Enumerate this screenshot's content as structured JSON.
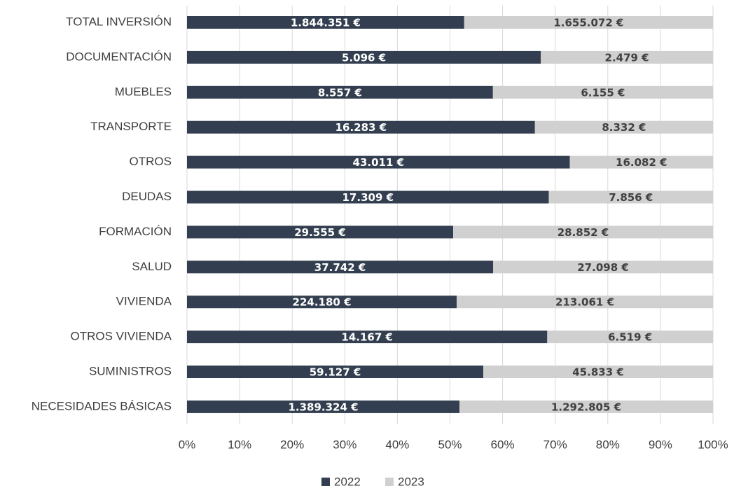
{
  "chart_data": {
    "type": "bar",
    "orientation": "horizontal",
    "stacking": "percent",
    "categories": [
      "TOTAL INVERSIÓN",
      "DOCUMENTACIÓN",
      "MUEBLES",
      "TRANSPORTE",
      "OTROS",
      "DEUDAS",
      "FORMACIÓN",
      "SALUD",
      "VIVIENDA",
      "OTROS VIVIENDA",
      "SUMINISTROS",
      "NECESIDADES BÁSICAS"
    ],
    "series": [
      {
        "name": "2022",
        "color": "#333f50",
        "label_color": "#ffffff",
        "values": [
          1844351,
          5096,
          8557,
          16283,
          43011,
          17309,
          29555,
          37742,
          224180,
          14167,
          59127,
          1389324
        ],
        "value_labels": [
          "1.844.351 €",
          "5.096 €",
          "8.557 €",
          "16.283 €",
          "43.011 €",
          "17.309 €",
          "29.555 €",
          "37.742 €",
          "224.180 €",
          "14.167 €",
          "59.127 €",
          "1.389.324 €"
        ]
      },
      {
        "name": "2023",
        "color": "#d0d0d0",
        "label_color": "#404040",
        "values": [
          1655072,
          2479,
          6155,
          8332,
          16082,
          7856,
          28852,
          27098,
          213061,
          6519,
          45833,
          1292805
        ],
        "value_labels": [
          "1.655.072 €",
          "2.479 €",
          "6.155 €",
          "8.332 €",
          "16.082 €",
          "7.856 €",
          "28.852 €",
          "27.098 €",
          "213.061 €",
          "6.519 €",
          "45.833 €",
          "1.292.805 €"
        ]
      }
    ],
    "xlim": [
      0,
      100
    ],
    "xticks": [
      {
        "value": 0,
        "label": "0%"
      },
      {
        "value": 10,
        "label": "10%"
      },
      {
        "value": 20,
        "label": "20%"
      },
      {
        "value": 30,
        "label": "30%"
      },
      {
        "value": 40,
        "label": "40%"
      },
      {
        "value": 50,
        "label": "50%"
      },
      {
        "value": 60,
        "label": "60%"
      },
      {
        "value": 70,
        "label": "70%"
      },
      {
        "value": 80,
        "label": "80%"
      },
      {
        "value": 90,
        "label": "90%"
      },
      {
        "value": 100,
        "label": "100%"
      }
    ],
    "grid": true,
    "legend": "bottom"
  }
}
